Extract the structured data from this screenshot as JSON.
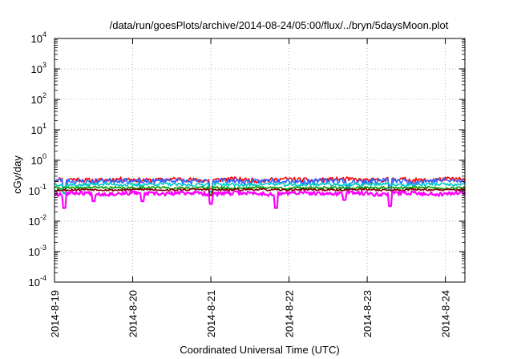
{
  "chart_data": {
    "type": "line",
    "title": "/data/run/goesPlots/archive/2014-08-24/05:00/flux/../bryn/5daysMoon.plot",
    "xlabel": "Coordinated Universal Time (UTC)",
    "ylabel": "cGy/day",
    "yscale": "log",
    "ylim": [
      0.0001,
      10000
    ],
    "xlim": [
      "2014-08-19",
      "2014-08-24T06:00"
    ],
    "grid": true,
    "y_ticks": [
      {
        "value": 0.0001,
        "mantissa": "10",
        "exp": "-4"
      },
      {
        "value": 0.001,
        "mantissa": "10",
        "exp": "-3"
      },
      {
        "value": 0.01,
        "mantissa": "10",
        "exp": "-2"
      },
      {
        "value": 0.1,
        "mantissa": "10",
        "exp": "-1"
      },
      {
        "value": 1,
        "mantissa": "10",
        "exp": "0"
      },
      {
        "value": 10,
        "mantissa": "10",
        "exp": "1"
      },
      {
        "value": 100,
        "mantissa": "10",
        "exp": "2"
      },
      {
        "value": 1000,
        "mantissa": "10",
        "exp": "3"
      },
      {
        "value": 10000,
        "mantissa": "10",
        "exp": "4"
      }
    ],
    "x_ticks": [
      {
        "value": "2014-08-19",
        "label": "2014-8-19"
      },
      {
        "value": "2014-08-20",
        "label": "2014-8-20"
      },
      {
        "value": "2014-08-21",
        "label": "2014-8-21"
      },
      {
        "value": "2014-08-22",
        "label": "2014-8-22"
      },
      {
        "value": "2014-08-23",
        "label": "2014-8-23"
      },
      {
        "value": "2014-08-24",
        "label": "2014-8-24"
      }
    ],
    "series": [
      {
        "color": "#ff0000",
        "base": 0.23,
        "amp": 0.35,
        "seed": 11,
        "dips": [
          [
            "2014-08-19T03:00",
            0.45
          ],
          [
            "2014-08-21T00:00",
            0.5
          ],
          [
            "2014-08-23T07:00",
            0.55
          ]
        ]
      },
      {
        "color": "#3366ff",
        "base": 0.21,
        "amp": 0.4,
        "seed": 23,
        "dips": [
          [
            "2014-08-19T03:00",
            0.4
          ],
          [
            "2014-08-21T00:00",
            0.45
          ],
          [
            "2014-08-22T18:00",
            0.55
          ],
          [
            "2014-08-23T07:00",
            0.5
          ]
        ]
      },
      {
        "color": "#00c8c8",
        "base": 0.16,
        "amp": 0.25,
        "seed": 37,
        "dips": [
          [
            "2014-08-19T03:00",
            0.5
          ],
          [
            "2014-08-21T00:00",
            0.55
          ]
        ]
      },
      {
        "color": "#009900",
        "base": 0.125,
        "amp": 0.18,
        "seed": 41,
        "dips": [
          [
            "2014-08-21T00:00",
            0.6
          ]
        ]
      },
      {
        "color": "#800000",
        "base": 0.108,
        "amp": 0.15,
        "seed": 53,
        "dips": [
          [
            "2014-08-21T00:00",
            0.65
          ]
        ]
      },
      {
        "color": "#ff00ff",
        "base": 0.082,
        "amp": 0.3,
        "seed": 67,
        "dips": [
          [
            "2014-08-19T03:00",
            0.33
          ],
          [
            "2014-08-19T12:00",
            0.55
          ],
          [
            "2014-08-20T03:00",
            0.55
          ],
          [
            "2014-08-21T00:00",
            0.45
          ],
          [
            "2014-08-21T20:00",
            0.33
          ],
          [
            "2014-08-22T17:00",
            0.6
          ],
          [
            "2014-08-23T07:00",
            0.38
          ]
        ]
      }
    ]
  }
}
